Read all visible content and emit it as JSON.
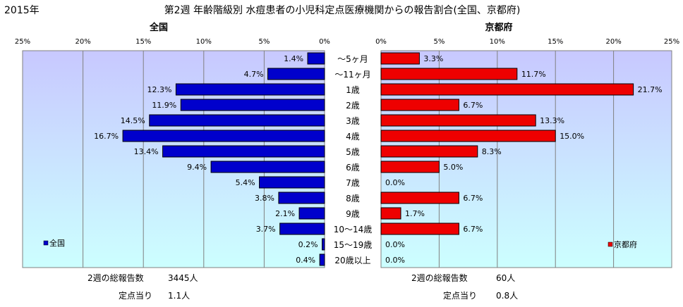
{
  "header": {
    "year": "2015年",
    "title": "第2週 年齢階級別 水痘患者の小児科定点医療機関からの報告割合(全国、京都府)"
  },
  "colors": {
    "national": "#0000cc",
    "kyoto": "#ee0000",
    "plot_bg_top": "#c8c8ff",
    "plot_bg_bottom": "#ccffff",
    "grid": "#808080"
  },
  "chart_data": {
    "type": "bar",
    "orientation": "horizontal-butterfly",
    "categories": [
      "～5ヶ月",
      "～11ヶ月",
      "1歳",
      "2歳",
      "3歳",
      "4歳",
      "5歳",
      "6歳",
      "7歳",
      "8歳",
      "9歳",
      "10～14歳",
      "15～19歳",
      "20歳以上"
    ],
    "xlim": [
      0,
      25
    ],
    "tick_labels": [
      "0%",
      "5%",
      "10%",
      "15%",
      "20%",
      "25%"
    ],
    "grid": true,
    "series": [
      {
        "key": "national",
        "name": "全国",
        "panel_title": "全国",
        "legend": "全国",
        "values": [
          1.4,
          4.7,
          12.3,
          11.9,
          14.5,
          16.7,
          13.4,
          9.4,
          5.4,
          3.8,
          2.1,
          3.7,
          0.2,
          0.4
        ],
        "labels": [
          "1.4%",
          "4.7%",
          "12.3%",
          "11.9%",
          "14.5%",
          "16.7%",
          "13.4%",
          "9.4%",
          "5.4%",
          "3.8%",
          "2.1%",
          "3.7%",
          "0.2%",
          "0.4%"
        ]
      },
      {
        "key": "kyoto",
        "name": "京都府",
        "panel_title": "京都府",
        "legend": "京都府",
        "values": [
          3.3,
          11.7,
          21.7,
          6.7,
          13.3,
          15.0,
          8.3,
          5.0,
          0.0,
          6.7,
          1.7,
          6.7,
          0.0,
          0.0
        ],
        "labels": [
          "3.3%",
          "11.7%",
          "21.7%",
          "6.7%",
          "13.3%",
          "15.0%",
          "8.3%",
          "5.0%",
          "0.0%",
          "6.7%",
          "1.7%",
          "6.7%",
          "0.0%",
          "0.0%"
        ]
      }
    ]
  },
  "summary": {
    "national": {
      "total_label": "2週の総報告数",
      "total_value": "3445人",
      "per_label": "定点当り",
      "per_value": "1.1人"
    },
    "kyoto": {
      "total_label": "2週の総報告数",
      "total_value": "60人",
      "per_label": "定点当り",
      "per_value": "0.8人"
    }
  }
}
